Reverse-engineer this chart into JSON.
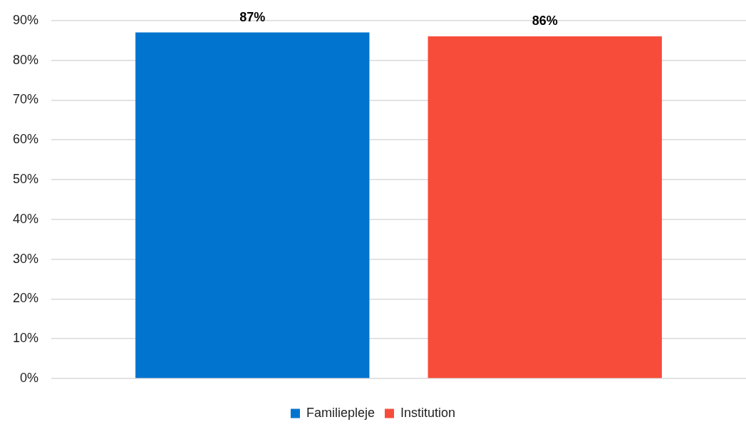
{
  "chart_data": {
    "type": "bar",
    "categories": [
      null
    ],
    "series": [
      {
        "name": "Familiepleje",
        "color": "#0074cf",
        "values": [
          87
        ],
        "value_labels": [
          "87%"
        ]
      },
      {
        "name": "Institution",
        "color": "#f84c3b",
        "values": [
          86
        ],
        "value_labels": [
          "86%"
        ]
      }
    ],
    "ylim": [
      0,
      90
    ],
    "yticks": [
      {
        "value": 0,
        "label": "0%"
      },
      {
        "value": 10,
        "label": "10%"
      },
      {
        "value": 20,
        "label": "20%"
      },
      {
        "value": 30,
        "label": "30%"
      },
      {
        "value": 40,
        "label": "40%"
      },
      {
        "value": 50,
        "label": "50%"
      },
      {
        "value": 60,
        "label": "60%"
      },
      {
        "value": 70,
        "label": "70%"
      },
      {
        "value": 80,
        "label": "80%"
      },
      {
        "value": 90,
        "label": "90%"
      }
    ],
    "grid": "y",
    "legend": "bottom"
  }
}
